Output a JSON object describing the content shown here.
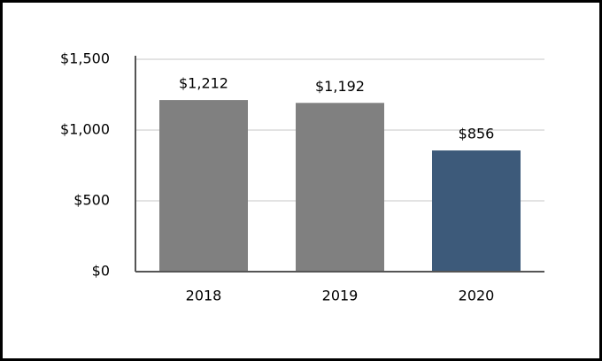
{
  "chart_data": {
    "type": "bar",
    "categories": [
      "2018",
      "2019",
      "2020"
    ],
    "values": [
      1212,
      1192,
      856
    ],
    "value_labels": [
      "$1,212",
      "$1,192",
      "$856"
    ],
    "colors": [
      "#808080",
      "#808080",
      "#3d5a7a"
    ],
    "ylim": [
      0,
      1500
    ],
    "yticks": [
      {
        "value": 0,
        "label": "$0"
      },
      {
        "value": 500,
        "label": "$500"
      },
      {
        "value": 1000,
        "label": "$1,000"
      },
      {
        "value": 1500,
        "label": "$1,500"
      }
    ],
    "grid": true
  }
}
